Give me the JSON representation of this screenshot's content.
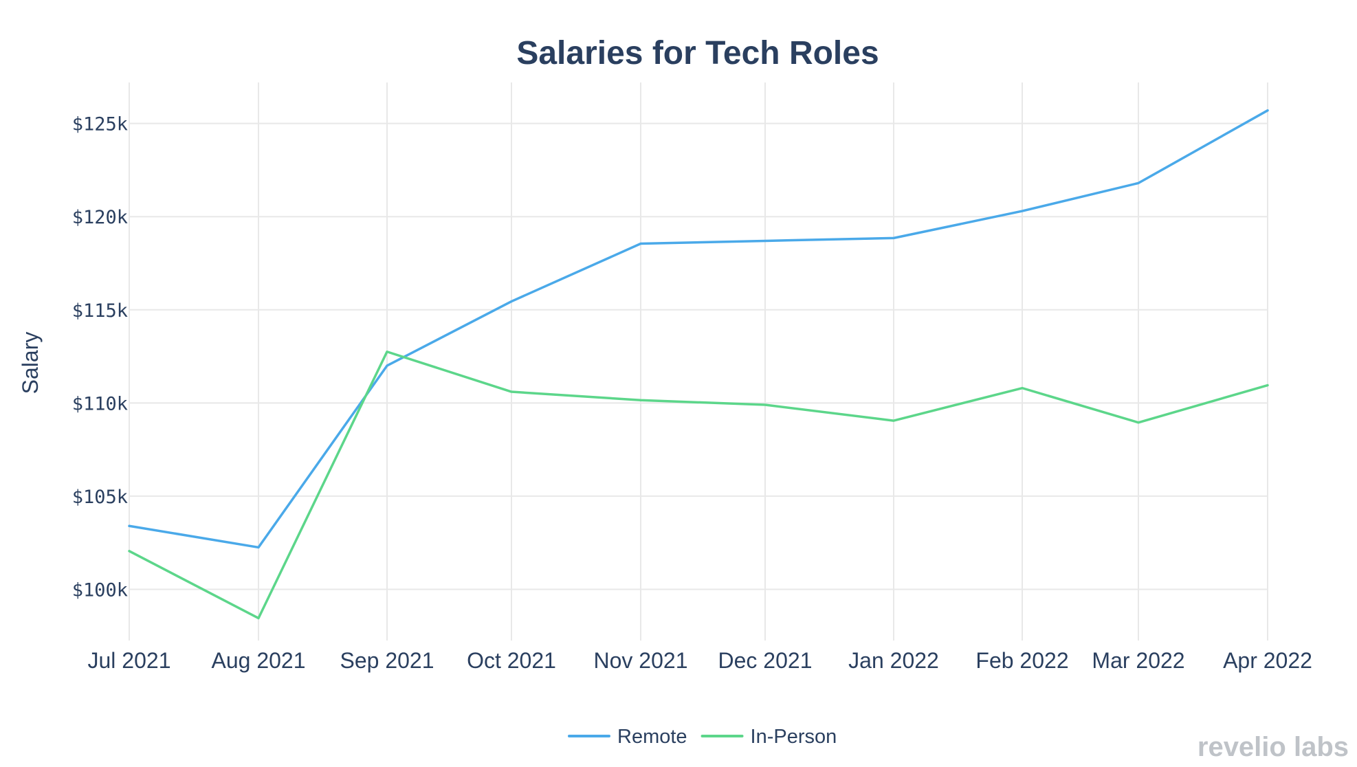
{
  "chart_data": {
    "type": "line",
    "title": "Salaries for Tech Roles",
    "xlabel": "",
    "ylabel": "Salary",
    "categories": [
      "Jul 2021",
      "Aug 2021",
      "Sep 2021",
      "Oct 2021",
      "Nov 2021",
      "Dec 2021",
      "Jan 2022",
      "Feb 2022",
      "Mar 2022",
      "Apr 2022"
    ],
    "series": [
      {
        "name": "Remote",
        "color": "#4aa9e9",
        "values": [
          103400,
          102250,
          112000,
          115450,
          118550,
          118700,
          118850,
          120300,
          121800,
          125700
        ]
      },
      {
        "name": "In-Person",
        "color": "#5cd68a",
        "values": [
          102050,
          98450,
          112750,
          110600,
          110150,
          109900,
          109050,
          110800,
          108950,
          110950
        ]
      }
    ],
    "yticks": [
      100000,
      105000,
      110000,
      115000,
      120000,
      125000
    ],
    "ytick_labels": [
      "$100k",
      "$105k",
      "$110k",
      "$115k",
      "$120k",
      "$125k"
    ],
    "ylim": [
      97250,
      127200
    ],
    "grid": true,
    "legend": "bottom-center",
    "watermark": "revelio labs",
    "colors": {
      "title": "#2a3f5f",
      "text": "#2a3f5f",
      "grid": "#e8e8e8",
      "watermark": "#bfc3c8"
    }
  }
}
